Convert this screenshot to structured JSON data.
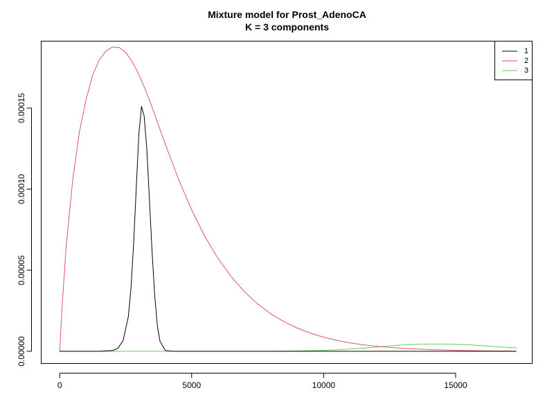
{
  "chart_data": {
    "type": "line",
    "title": "Mixture model for Prost_AdenoCA",
    "subtitle": "K = 3 components",
    "xlabel": "",
    "ylabel": "",
    "xlim": [
      -700,
      17900
    ],
    "ylim": [
      -7.5e-06,
      0.0001912
    ],
    "x_ticks": [
      0,
      5000,
      10000,
      15000
    ],
    "x_tick_labels": [
      "0",
      "5000",
      "10000",
      "15000"
    ],
    "y_ticks": [
      0,
      5e-05,
      0.0001,
      0.00015
    ],
    "y_tick_labels": [
      "0.00000",
      "0.00005",
      "0.00010",
      "0.00015"
    ],
    "grid": false,
    "legend_position": "top-right",
    "series": [
      {
        "name": "1",
        "color": "#000000",
        "x": [
          0,
          1500,
          2000,
          2200,
          2400,
          2600,
          2700,
          2800,
          2900,
          3000,
          3100,
          3200,
          3300,
          3400,
          3500,
          3600,
          3700,
          3800,
          4000,
          4200,
          4400,
          5000,
          17300
        ],
        "y": [
          0,
          0,
          5e-07,
          1.8e-06,
          6.5e-06,
          2.12e-05,
          3.88e-05,
          6.59e-05,
          0.0001005,
          0.000134,
          0.000151,
          0.000145,
          0.000125,
          9.35e-05,
          6.15e-05,
          3.43e-05,
          1.58e-05,
          6.2e-06,
          5e-07,
          1e-07,
          0,
          0,
          0
        ]
      },
      {
        "name": "2",
        "color": "#DF536B",
        "x": [
          0,
          100,
          250,
          500,
          750,
          1000,
          1250,
          1500,
          1750,
          2000,
          2250,
          2500,
          2750,
          3000,
          3250,
          3500,
          3750,
          4000,
          4500,
          5000,
          5500,
          6000,
          6500,
          7000,
          7500,
          8000,
          8500,
          9000,
          9500,
          10000,
          10500,
          11000,
          11500,
          12000,
          12500,
          13000,
          14000,
          15000,
          16000,
          17300
        ],
        "y": [
          0,
          2.99e-05,
          6.54e-05,
          0.0001066,
          0.0001355,
          0.0001553,
          0.0001704,
          0.0001796,
          0.0001851,
          0.0001876,
          0.0001873,
          0.0001843,
          0.0001785,
          0.0001707,
          0.0001612,
          0.0001505,
          0.0001391,
          0.0001278,
          0.0001062,
          8.71e-05,
          7.08e-05,
          5.72e-05,
          4.6e-05,
          3.67e-05,
          2.92e-05,
          2.31e-05,
          1.82e-05,
          1.43e-05,
          1.12e-05,
          8.7e-06,
          6.8e-06,
          5.2e-06,
          4e-06,
          3.1e-06,
          2.4e-06,
          1.8e-06,
          1.1e-06,
          6e-07,
          3e-07,
          1e-07
        ]
      },
      {
        "name": "3",
        "color": "#61D04F",
        "x": [
          0,
          8000,
          9000,
          10000,
          10500,
          11000,
          11500,
          12000,
          12500,
          13000,
          13500,
          14000,
          14500,
          15000,
          15500,
          16000,
          16500,
          17000,
          17300
        ],
        "y": [
          0,
          0,
          2e-07,
          6e-07,
          9e-07,
          1.4e-06,
          1.9e-06,
          2.6e-06,
          3.3e-06,
          3.9e-06,
          4.3e-06,
          4.5e-06,
          4.5e-06,
          4.3e-06,
          4e-06,
          3.5e-06,
          2.9e-06,
          2.4e-06,
          2.1e-06
        ]
      }
    ]
  }
}
